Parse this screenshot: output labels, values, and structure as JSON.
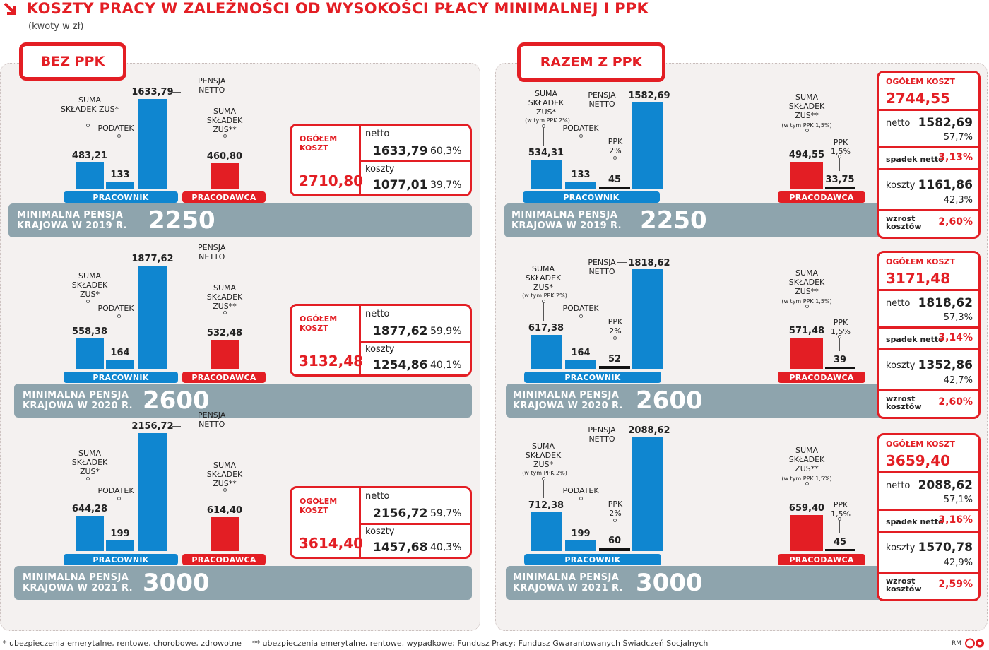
{
  "header": {
    "title": "KOSZTY PRACY W ZALEŻNOŚCI OD WYSOKOŚCI PŁACY MINIMALNEJ I PPK",
    "subtitle": "(kwoty w zł)"
  },
  "labels": {
    "bez_ppk": "BEZ PPK",
    "razem_z_ppk": "RAZEM Z PPK",
    "pracownik": "PRACOWNIK",
    "pracodawca": "PRACODAWCA",
    "suma_zus": "SUMA\nSKŁADEK\nZUS*",
    "suma_zus_inline": "SUMA\nSKŁADEK ZUS*",
    "suma_zus_pracodawca": "SUMA\nSKŁADEK\nZUS**",
    "w_tym_ppk2": "(w tym PPK 2%)",
    "w_tym_ppk15": "(w tym PPK 1,5%)",
    "podatek": "PODATEK",
    "pensja_netto": "PENSJA\nNETTO",
    "ppk2": "PPK\n2%",
    "ppk15": "PPK\n1,5%",
    "ogolem_koszt_2line": "OGÓŁEM\nKOSZT",
    "ogolem_koszt": "OGÓŁEM KOSZT",
    "netto": "netto",
    "koszty": "koszty",
    "spadek_netto": "spadek netto",
    "wzrost_kosztow": "wzrost\nkosztów"
  },
  "chart_data": [
    {
      "type": "bar",
      "panel": "BEZ PPK",
      "band_label": "MINIMALNA PENSJA\nKRAJOWA W 2019 R.",
      "minimal_wage": "2250",
      "categories": [
        "SUMA SKŁADEK ZUS*",
        "PODATEK",
        "PENSJA NETTO",
        "SUMA SKŁADEK ZUS**"
      ],
      "values": [
        483.21,
        133,
        1633.79,
        460.8
      ],
      "value_labels": [
        "483,21",
        "133",
        "1633,79",
        "460,80"
      ],
      "summary": {
        "total": "2710,80",
        "netto": "1633,79",
        "netto_pct": "60,3%",
        "koszty": "1077,01",
        "koszty_pct": "39,7%"
      }
    },
    {
      "type": "bar",
      "panel": "BEZ PPK",
      "band_label": "MINIMALNA PENSJA\nKRAJOWA W 2020 R.",
      "minimal_wage": "2600",
      "categories": [
        "SUMA SKŁADEK ZUS*",
        "PODATEK",
        "PENSJA NETTO",
        "SUMA SKŁADEK ZUS**"
      ],
      "values": [
        558.38,
        164,
        1877.62,
        532.48
      ],
      "value_labels": [
        "558,38",
        "164",
        "1877,62",
        "532,48"
      ],
      "summary": {
        "total": "3132,48",
        "netto": "1877,62",
        "netto_pct": "59,9%",
        "koszty": "1254,86",
        "koszty_pct": "40,1%"
      }
    },
    {
      "type": "bar",
      "panel": "BEZ PPK",
      "band_label": "MINIMALNA PENSJA\nKRAJOWA W 2021 R.",
      "minimal_wage": "3000",
      "categories": [
        "SUMA SKŁADEK ZUS*",
        "PODATEK",
        "PENSJA NETTO",
        "SUMA SKŁADEK ZUS**"
      ],
      "values": [
        644.28,
        199,
        2156.72,
        614.4
      ],
      "value_labels": [
        "644,28",
        "199",
        "2156,72",
        "614,40"
      ],
      "summary": {
        "total": "3614,40",
        "netto": "2156,72",
        "netto_pct": "59,7%",
        "koszty": "1457,68",
        "koszty_pct": "40,3%"
      }
    },
    {
      "type": "bar",
      "panel": "RAZEM Z PPK",
      "band_label": "MINIMALNA PENSJA\nKRAJOWA W 2019 R.",
      "minimal_wage": "2250",
      "categories": [
        "SUMA SKŁADEK ZUS*",
        "PODATEK",
        "PPK 2%",
        "PENSJA NETTO",
        "SUMA SKŁADEK ZUS**",
        "PPK 1,5%"
      ],
      "values": [
        534.31,
        133,
        45,
        1582.69,
        494.55,
        33.75
      ],
      "value_labels": [
        "534,31",
        "133",
        "45",
        "1582,69",
        "494,55",
        "33,75"
      ],
      "summary": {
        "total": "2744,55",
        "netto": "1582,69",
        "netto_pct": "57,7%",
        "spadek_netto": "3,13%",
        "koszty": "1161,86",
        "koszty_pct": "42,3%",
        "wzrost_kosztow": "2,60%"
      }
    },
    {
      "type": "bar",
      "panel": "RAZEM Z PPK",
      "band_label": "MINIMALNA PENSJA\nKRAJOWA W 2020 R.",
      "minimal_wage": "2600",
      "categories": [
        "SUMA SKŁADEK ZUS*",
        "PODATEK",
        "PPK 2%",
        "PENSJA NETTO",
        "SUMA SKŁADEK ZUS**",
        "PPK 1,5%"
      ],
      "values": [
        617.38,
        164,
        52,
        1818.62,
        571.48,
        39
      ],
      "value_labels": [
        "617,38",
        "164",
        "52",
        "1818,62",
        "571,48",
        "39"
      ],
      "summary": {
        "total": "3171,48",
        "netto": "1818,62",
        "netto_pct": "57,3%",
        "spadek_netto": "3,14%",
        "koszty": "1352,86",
        "koszty_pct": "42,7%",
        "wzrost_kosztow": "2,60%"
      }
    },
    {
      "type": "bar",
      "panel": "RAZEM Z PPK",
      "band_label": "MINIMALNA PENSJA\nKRAJOWA W 2021 R.",
      "minimal_wage": "3000",
      "categories": [
        "SUMA SKŁADEK ZUS*",
        "PODATEK",
        "PPK 2%",
        "PENSJA NETTO",
        "SUMA SKŁADEK ZUS**",
        "PPK 1,5%"
      ],
      "values": [
        712.38,
        199,
        60,
        2088.62,
        659.4,
        45
      ],
      "value_labels": [
        "712,38",
        "199",
        "60",
        "2088,62",
        "659,40",
        "45"
      ],
      "summary": {
        "total": "3659,40",
        "netto": "2088,62",
        "netto_pct": "57,1%",
        "spadek_netto": "3,16%",
        "koszty": "1570,78",
        "koszty_pct": "42,9%",
        "wzrost_kosztow": "2,59%"
      }
    }
  ],
  "footer": {
    "note1": "* ubezpieczenia emerytalne, rentowe, chorobowe, zdrowotne",
    "note2": "** ubezpieczenia emerytalne, rentowe, wypadkowe; Fundusz Pracy; Fundusz Gwarantowanych Świadczeń Socjalnych",
    "credit": "RM"
  },
  "colors": {
    "red": "#e31e24",
    "blue": "#0f86d0",
    "band": "#8ea4ad",
    "panel": "#f4f1f0"
  }
}
